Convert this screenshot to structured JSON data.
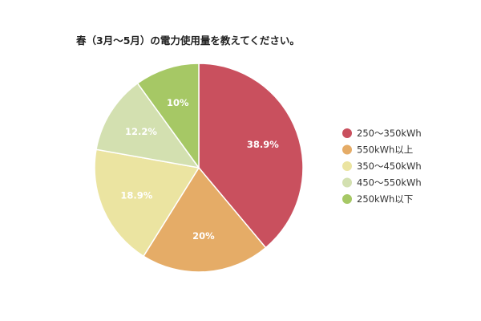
{
  "chart_data": {
    "type": "pie",
    "title": "春（3月〜5月）の電力使用量を教えてください。",
    "slices": [
      {
        "label": "250〜350kWh",
        "value": 38.9,
        "value_label": "38.9%",
        "color": "#c9505e"
      },
      {
        "label": "550kWh以上",
        "value": 20,
        "value_label": "20%",
        "color": "#e5ac67"
      },
      {
        "label": "350〜450kWh",
        "value": 18.9,
        "value_label": "18.9%",
        "color": "#ebe4a1"
      },
      {
        "label": "450〜550kWh",
        "value": 12.2,
        "value_label": "12.2%",
        "color": "#d3e0b0"
      },
      {
        "label": "250kWh以下",
        "value": 10,
        "value_label": "10%",
        "color": "#a6c865"
      }
    ],
    "legend_position": "right",
    "start": "12 o'clock",
    "direction": "clockwise"
  }
}
